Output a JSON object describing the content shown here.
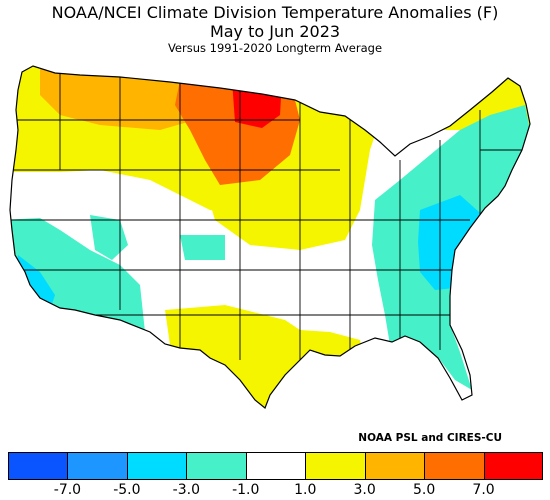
{
  "header": {
    "title_line1": "NOAA/NCEI Climate Division Temperature Anomalies (F)",
    "title_line2": "May to Jun 2023",
    "subtitle": "Versus 1991-2020 Longterm Average"
  },
  "credit": "NOAA PSL and CIRES-CU",
  "legend": {
    "units": "F",
    "bins": [
      {
        "range": "< -7.0",
        "color": "#0a55ff"
      },
      {
        "range": "-7.0 to -5.0",
        "color": "#1e96ff"
      },
      {
        "range": "-5.0 to -3.0",
        "color": "#00dcff"
      },
      {
        "range": "-3.0 to -1.0",
        "color": "#46f0c8"
      },
      {
        "range": "-1.0 to 1.0",
        "color": "#ffffff"
      },
      {
        "range": "1.0 to 3.0",
        "color": "#f5f500"
      },
      {
        "range": "3.0 to 5.0",
        "color": "#ffb400"
      },
      {
        "range": "5.0 to 7.0",
        "color": "#ff6e00"
      },
      {
        "range": "> 7.0",
        "color": "#ff0000"
      }
    ],
    "tick_labels": [
      "-7.0",
      "-5.0",
      "-3.0",
      "-1.0",
      "1.0",
      "3.0",
      "5.0",
      "7.0"
    ]
  },
  "map": {
    "regions": [
      {
        "name": "northern-plains",
        "category": "> 7.0"
      },
      {
        "name": "northern-rockies-upper-midwest",
        "category": "5.0 to 7.0"
      },
      {
        "name": "pacific-northwest",
        "category": "3.0 to 5.0"
      },
      {
        "name": "northern-tier",
        "category": "1.0 to 3.0"
      },
      {
        "name": "texas-gulf-coast",
        "category": "1.0 to 3.0"
      },
      {
        "name": "central-plains-midwest",
        "category": "1.0 to 3.0"
      },
      {
        "name": "california-southwest",
        "category": "-3.0 to -1.0"
      },
      {
        "name": "southern-california-coast",
        "category": "-5.0 to -3.0"
      },
      {
        "name": "eastern-us",
        "category": "-3.0 to -1.0"
      },
      {
        "name": "southern-appalachians-carolinas",
        "category": "-5.0 to -3.0"
      },
      {
        "name": "great-basin-colorado-ozarks",
        "category": "-1.0 to 1.0"
      }
    ]
  }
}
